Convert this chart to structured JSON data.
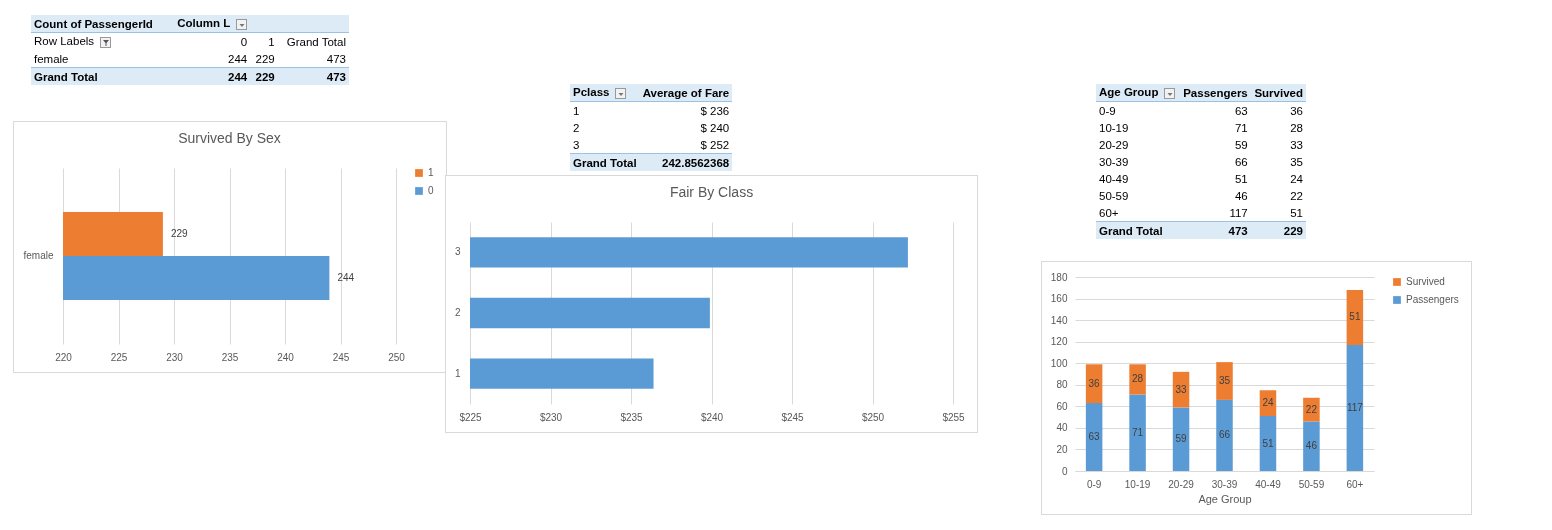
{
  "chart_data": [
    {
      "type": "other",
      "cell_labels": [
        [
          "Count of PassengerId",
          "Column L",
          null,
          null
        ],
        [
          "Row Labels",
          "0",
          "1",
          "Grand Total"
        ],
        [
          "female",
          "244",
          "229",
          "473"
        ],
        [
          "Grand Total",
          "244",
          "229",
          "473"
        ]
      ]
    },
    {
      "type": "other",
      "cell_labels": [
        [
          "Pclass",
          "Average of Fare"
        ],
        [
          "1",
          "$ 236"
        ],
        [
          "2",
          "$ 240"
        ],
        [
          "3",
          "$ 252"
        ],
        [
          "Grand Total",
          "242.8562368"
        ]
      ]
    },
    {
      "type": "other",
      "cell_labels": [
        [
          "Age Group",
          "Passengers",
          "Survived"
        ],
        [
          "0-9",
          "63",
          "36"
        ],
        [
          "10-19",
          "71",
          "28"
        ],
        [
          "20-29",
          "59",
          "33"
        ],
        [
          "30-39",
          "66",
          "35"
        ],
        [
          "40-49",
          "51",
          "24"
        ],
        [
          "50-59",
          "46",
          "22"
        ],
        [
          "60+",
          "117",
          "51"
        ],
        [
          "Grand Total",
          "473",
          "229"
        ]
      ]
    },
    {
      "type": "bar",
      "title": "Survived By Sex",
      "orientation": "horizontal",
      "categories": [
        "female"
      ],
      "series": [
        {
          "name": "1",
          "color": "#ed7d31",
          "values": [
            229
          ]
        },
        {
          "name": "0",
          "color": "#5b9bd5",
          "values": [
            244
          ]
        }
      ],
      "xlim": [
        220,
        250
      ],
      "xticks": [
        220,
        225,
        230,
        235,
        240,
        245,
        250
      ],
      "grid": "x",
      "legend": "right",
      "data_labels": true
    },
    {
      "type": "bar",
      "title": "Fair By Class",
      "orientation": "horizontal",
      "categories": [
        "3",
        "2",
        "1"
      ],
      "values": [
        252.2,
        239.9,
        236.4
      ],
      "color": "#5b9bd5",
      "xlim": [
        225,
        255
      ],
      "xticks": [
        {
          "value": 225,
          "label": "$225"
        },
        {
          "value": 230,
          "label": "$230"
        },
        {
          "value": 235,
          "label": "$235"
        },
        {
          "value": 240,
          "label": "$240"
        },
        {
          "value": 245,
          "label": "$245"
        },
        {
          "value": 250,
          "label": "$250"
        },
        {
          "value": 255,
          "label": "$255"
        }
      ],
      "grid": "x"
    },
    {
      "type": "bar",
      "xlabel": "Age Group",
      "stacked": true,
      "categories": [
        "0-9",
        "10-19",
        "20-29",
        "30-39",
        "40-49",
        "50-59",
        "60+"
      ],
      "series": [
        {
          "name": "Passengers",
          "color": "#5b9bd5",
          "values": [
            63,
            71,
            59,
            66,
            51,
            46,
            117
          ]
        },
        {
          "name": "Survived",
          "color": "#ed7d31",
          "values": [
            36,
            28,
            33,
            35,
            24,
            22,
            51
          ]
        }
      ],
      "ylim": [
        0,
        180
      ],
      "yticks": [
        0,
        20,
        40,
        60,
        80,
        100,
        120,
        140,
        160,
        180
      ],
      "grid": "y",
      "legend": "right",
      "data_labels": true
    }
  ]
}
